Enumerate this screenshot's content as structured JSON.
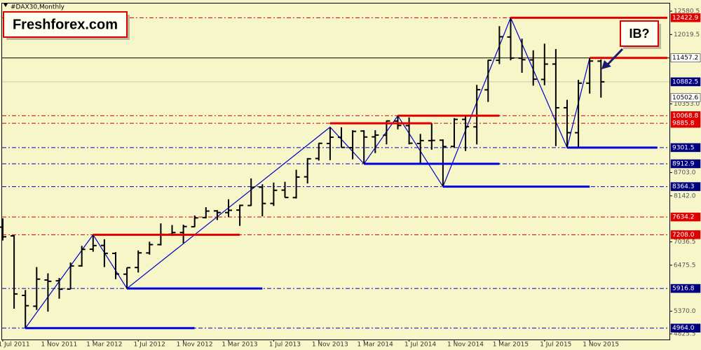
{
  "chart_data": {
    "type": "ohlc",
    "title": "#DAX30,Monthly",
    "categories": [
      "1 Jul 2011",
      null,
      null,
      null,
      "1 Nov 2011",
      null,
      null,
      null,
      "1 Mar 2012",
      null,
      null,
      null,
      "1 Jul 2012",
      null,
      null,
      null,
      "1 Nov 2012",
      null,
      null,
      null,
      "1 Mar 2013",
      null,
      null,
      null,
      "1 Jul 2013",
      null,
      null,
      null,
      "1 Nov 2013",
      null,
      null,
      null,
      "1 Mar 2014",
      null,
      null,
      null,
      "1 Jul 2014",
      null,
      null,
      null,
      "1 Nov 2014",
      null,
      null,
      null,
      "1 Mar 2015",
      null,
      null,
      null,
      "1 Jul 2015",
      null,
      null,
      null,
      "1 Nov 2015",
      null
    ],
    "color": "#000000",
    "open": [
      7390,
      7180,
      5750,
      5490,
      6120,
      6100,
      5900,
      6460,
      6860,
      6950,
      6760,
      6260,
      6420,
      6770,
      6970,
      7220,
      7260,
      7400,
      7620,
      7780,
      7740,
      7800,
      7910,
      8350,
      7960,
      8280,
      8100,
      8600,
      9040,
      9400,
      9550,
      9300,
      9700,
      9560,
      9600,
      9940,
      9830,
      9400,
      9470,
      9480,
      9330,
      9980,
      9800,
      10690,
      11400,
      11960,
      11450,
      11410,
      10940,
      11310,
      10260,
      9660,
      10850,
      11380
    ],
    "high": [
      7600,
      7200,
      5880,
      6430,
      6280,
      6170,
      6540,
      6940,
      7208,
      7100,
      6790,
      6420,
      6830,
      7040,
      7480,
      7440,
      7450,
      7670,
      7870,
      7800,
      8060,
      7930,
      8560,
      8420,
      8460,
      8480,
      8770,
      9050,
      9410,
      9794,
      9790,
      9720,
      9720,
      9720,
      9950,
      10068.8,
      10030,
      9630,
      9890,
      9500,
      10010,
      10090,
      10810,
      11410,
      12220,
      12422.9,
      11920,
      11640,
      11800,
      11670,
      10450,
      10930,
      11457.2,
      11420
    ],
    "low": [
      7070,
      5430,
      4964,
      5400,
      5360,
      5670,
      5900,
      6440,
      6800,
      6430,
      6140,
      5916.8,
      6300,
      6730,
      6950,
      7180,
      7000,
      7390,
      7600,
      7560,
      7640,
      7420,
      7900,
      7650,
      7900,
      8100,
      8080,
      8440,
      8990,
      9000,
      9300,
      9020,
      8912.9,
      9170,
      9380,
      9740,
      9380,
      8900,
      9250,
      8364.3,
      9300,
      9220,
      9380,
      10400,
      11310,
      11400,
      11100,
      10790,
      10800,
      9338,
      9301.5,
      9310,
      10600,
      10502.6
    ],
    "close": [
      7158,
      5785,
      5502,
      6141,
      6089,
      5898,
      6458,
      6856,
      6947,
      6761,
      6264,
      6416,
      6772,
      6970,
      7216,
      7260,
      7405,
      7612,
      7776,
      7741,
      7795,
      7914,
      8348,
      7959,
      8276,
      8103,
      8594,
      9033,
      9405,
      9552,
      9306,
      9692,
      9556,
      9603,
      9943,
      9833,
      9407,
      9470,
      9474,
      9326,
      9980,
      9806,
      10694,
      11401,
      11966,
      11454,
      11414,
      10945,
      11309,
      10259,
      9660,
      10850,
      11382,
      10882.5
    ],
    "ylim": [
      4690,
      12765
    ],
    "yticks": [
      12580.5,
      12019.5,
      {
        "value": 10353,
        "label": "10353.0"
      },
      {
        "value": 8703,
        "label": "8703.0"
      },
      {
        "value": 8142,
        "label": "8142.0"
      },
      7036.5,
      6475.5,
      {
        "value": 5370,
        "label": "5370.0"
      },
      4825.5
    ],
    "levels": [
      {
        "value": 12422.9,
        "color": "#e00000",
        "style": "dashdot",
        "segment": [
          45,
          59
        ]
      },
      {
        "value": 11457.2,
        "color": "#ffffff",
        "style": "solid",
        "segment": [
          52,
          59
        ]
      },
      {
        "value": 10882.5,
        "color": "#000080",
        "style": "faint"
      },
      {
        "value": 10502.6,
        "color": "#ffffff",
        "style": "none"
      },
      {
        "value": 10068.8,
        "color": "#e00000",
        "style": "dashdot",
        "segment": [
          35,
          44
        ]
      },
      {
        "value": 9885.8,
        "color": "#e00000",
        "style": "dashdot",
        "segment": [
          29,
          38
        ]
      },
      {
        "value": 9301.5,
        "color": "#000080",
        "style": "dashdot",
        "segment": [
          50,
          58
        ]
      },
      {
        "value": 8912.9,
        "color": "#000080",
        "style": "dashdot",
        "segment": [
          32,
          44
        ]
      },
      {
        "value": 8364.3,
        "color": "#000080",
        "style": "dashdot",
        "segment": [
          39,
          52
        ]
      },
      {
        "value": 7634.2,
        "color": "#e00000",
        "style": "dashdot"
      },
      {
        "value": 7208,
        "label": "7208.0",
        "color": "#e00000",
        "style": "dashdot",
        "segment": [
          8,
          21
        ]
      },
      {
        "value": 5916.8,
        "color": "#000080",
        "style": "dashdot",
        "segment": [
          11,
          23
        ]
      },
      {
        "value": 4964,
        "label": "4964.0",
        "color": "#000080",
        "style": "dashdot",
        "segment": [
          2,
          17
        ]
      }
    ],
    "zigzag": {
      "color": "#0000cc",
      "x": [
        2,
        8,
        11,
        29,
        32,
        35,
        39,
        45,
        50,
        52
      ],
      "y": [
        4964,
        7208,
        5916.8,
        9794,
        8912.9,
        10068.8,
        8364.3,
        12422.9,
        9301.5,
        11457.2
      ]
    },
    "annotations": [
      "Freshforex.com",
      "IB?"
    ]
  }
}
